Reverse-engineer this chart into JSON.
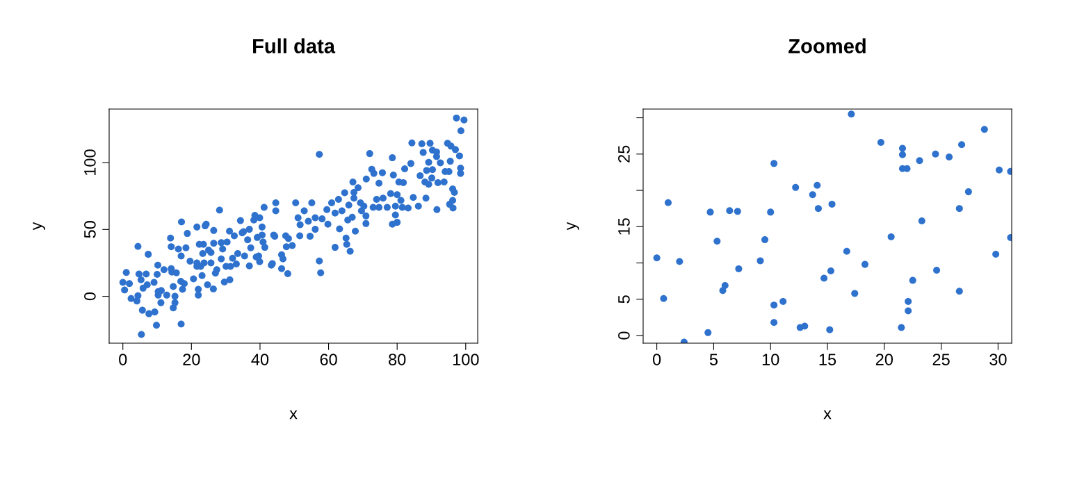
{
  "chart_data": [
    {
      "type": "scatter",
      "title": "Full data",
      "xlabel": "x",
      "ylabel": "y",
      "marker": "circle",
      "xlim": [
        -4,
        103.5
      ],
      "ylim": [
        -35,
        140
      ],
      "xticks": [
        0,
        20,
        40,
        60,
        80,
        100
      ],
      "yticks": [
        0,
        50,
        100
      ],
      "series": [
        {
          "color": "#2f72ce",
          "x": [
            5.4,
            9.8,
            17.0,
            0.0,
            0.5,
            1.0,
            1.9,
            2.4,
            4.4,
            4.1,
            4.4,
            4.7,
            5.3,
            5.7,
            5.9,
            6.8,
            7.4,
            7.6,
            7.1,
            9.1,
            9.3,
            10.0,
            10.2,
            10.3,
            10.3,
            11.2,
            11.1,
            12.0,
            12.8,
            13.9,
            14.1,
            14.1,
            14.3,
            14.7,
            15.2,
            15.2,
            14.7,
            15.6,
            16.2,
            17.1,
            17.0,
            17.4,
            16.9,
            17.9,
            18.4,
            18.8,
            19.6,
            20.6,
            21.6,
            21.6,
            21.6,
            22.0,
            22.0,
            22.3,
            22.7,
            23.1,
            23.5,
            24.0,
            24.3,
            23.3,
            23.7,
            24.7,
            25.0,
            25.7,
            25.7,
            26.5,
            26.5,
            26.4,
            27.0,
            27.4,
            28.2,
            28.7,
            28.7,
            29.1,
            29.6,
            30.1,
            30.4,
            31.1,
            31.2,
            31.4,
            32.0,
            32.5,
            33.1,
            33.5,
            34.3,
            34.8,
            35.2,
            35.5,
            36.4,
            36.9,
            36.9,
            37.3,
            38.2,
            38.5,
            38.9,
            39.2,
            39.6,
            39.9,
            39.9,
            40.6,
            40.6,
            41.2,
            40.9,
            41.4,
            43.3,
            43.6,
            44.0,
            44.3,
            44.6,
            44.6,
            46.3,
            46.3,
            46.7,
            47.5,
            47.7,
            48.1,
            48.3,
            49.4,
            50.4,
            55.1,
            51.1,
            51.7,
            51.6,
            52.9,
            54.1,
            54.6,
            56.1,
            56.1,
            57.3,
            57.3,
            57.7,
            58.1,
            59.5,
            59.8,
            60.9,
            61.9,
            61.9,
            62.9,
            63.2,
            63.9,
            64.7,
            65.1,
            65.3,
            65.6,
            65.9,
            66.3,
            66.9,
            67.1,
            67.4,
            67.4,
            67.8,
            68.6,
            69.3,
            69.6,
            70.3,
            70.9,
            70.9,
            71.0,
            72.0,
            72.6,
            73.0,
            73.2,
            74.0,
            74.7,
            74.7,
            75.7,
            75.9,
            77.1,
            78.1,
            78.6,
            78.6,
            78.9,
            79.5,
            80.0,
            79.5,
            80.0,
            80.5,
            81.1,
            81.5,
            81.8,
            82.2,
            83.2,
            84.0,
            84.3,
            84.7,
            86.2,
            86.7,
            87.2,
            87.6,
            88.1,
            88.6,
            88.4,
            89.2,
            89.2,
            89.6,
            90.1,
            90.3,
            90.3,
            91.5,
            91.5,
            91.6,
            91.9,
            92.6,
            93.7,
            94.0,
            94.7,
            95.3,
            95.5,
            95.7,
            95.1,
            96.2,
            96.3,
            96.2,
            96.7,
            97.0,
            97.3,
            98.2,
            98.5,
            98.5,
            98.6,
            99.5
          ],
          "values": [
            -28.5,
            -21.6,
            -20.7,
            10.4,
            4.7,
            17.8,
            9.5,
            -1.6,
            37.3,
            -3.5,
            0.5,
            16.7,
            12.4,
            -10.4,
            6.1,
            16.7,
            31.4,
            -13.0,
            8.6,
            10.4,
            -11.7,
            16.4,
            23.3,
            3.5,
            0.9,
            4.3,
            -4.8,
            19.9,
            0.9,
            43.5,
            37.1,
            20.7,
            18.1,
            7.3,
            0.0,
            -4.8,
            -8.6,
            17.6,
            35.4,
            55.6,
            30.2,
            5.2,
            11.2,
            9.5,
            36.3,
            47.0,
            26.3,
            13.0,
            51.8,
            25.0,
            22.4,
            5.2,
            0.9,
            38.9,
            22.4,
            15.5,
            38.9,
            52.7,
            53.9,
            32.0,
            25.0,
            8.6,
            34.6,
            25.0,
            32.8,
            49.2,
            39.7,
            5.5,
            17.3,
            19.9,
            64.4,
            40.1,
            28.0,
            35.4,
            10.7,
            22.4,
            40.6,
            48.7,
            12.4,
            22.4,
            28.5,
            45.2,
            24.2,
            32.0,
            56.6,
            47.5,
            48.3,
            30.2,
            42.3,
            50.1,
            22.8,
            36.3,
            57.0,
            60.5,
            29.4,
            44.0,
            30.2,
            58.7,
            25.9,
            51.8,
            45.8,
            66.5,
            40.6,
            36.6,
            23.3,
            24.5,
            45.8,
            44.9,
            69.9,
            63.9,
            31.1,
            20.7,
            28.0,
            45.2,
            37.1,
            16.9,
            43.2,
            38.0,
            69.9,
            69.9,
            58.7,
            53.5,
            45.2,
            63.9,
            56.1,
            44.9,
            58.7,
            50.1,
            106.1,
            26.4,
            17.6,
            57.9,
            64.8,
            53.9,
            69.9,
            62.2,
            36.6,
            72.5,
            50.4,
            63.9,
            77.4,
            43.5,
            38.9,
            57.0,
            68.2,
            33.7,
            59.1,
            85.5,
            77.7,
            73.4,
            48.7,
            81.2,
            69.9,
            63.9,
            67.4,
            60.1,
            54.4,
            87.7,
            106.7,
            95.0,
            66.5,
            91.9,
            72.5,
            84.6,
            66.5,
            92.4,
            73.4,
            66.5,
            76.8,
            103.6,
            53.9,
            90.7,
            60.8,
            55.3,
            67.4,
            76.0,
            85.5,
            71.7,
            66.5,
            85.0,
            95.3,
            66.0,
            99.3,
            114.7,
            73.9,
            67.4,
            90.2,
            114.0,
            107.6,
            85.5,
            94.1,
            73.4,
            100.2,
            83.8,
            114.4,
            88.4,
            109.2,
            94.7,
            107.9,
            104.5,
            64.8,
            85.0,
            99.8,
            85.5,
            93.3,
            114.4,
            68.8,
            101.0,
            112.3,
            93.3,
            80.3,
            66.0,
            71.7,
            77.7,
            109.7,
            133.3,
            105.0,
            95.9,
            91.9,
            123.8,
            131.8
          ]
        }
      ]
    },
    {
      "type": "scatter",
      "title": "Zoomed",
      "xlabel": "x",
      "ylabel": "y",
      "marker": "circle",
      "xlim": [
        -1.2,
        31.2
      ],
      "ylim": [
        -1.05,
        31.2
      ],
      "xticks": [
        0,
        5,
        10,
        15,
        20,
        25,
        30
      ],
      "yticks": [
        0,
        5,
        {
          "value": 10,
          "label": null
        },
        15,
        {
          "value": 20,
          "label": null
        },
        25,
        {
          "value": 30,
          "label": null
        }
      ],
      "series": [
        {
          "color": "#2f72ce",
          "x": [
            0.0,
            0.6,
            1.0,
            2.0,
            2.4,
            4.5,
            4.7,
            5.3,
            5.8,
            6.0,
            6.4,
            7.1,
            7.2,
            9.1,
            9.5,
            10.0,
            10.3,
            10.3,
            10.3,
            11.1,
            12.2,
            12.6,
            13.0,
            13.7,
            14.1,
            14.2,
            14.7,
            15.2,
            15.3,
            15.4,
            16.7,
            17.1,
            17.4,
            18.3,
            19.7,
            20.6,
            21.6,
            21.6,
            21.6,
            22.0,
            21.5,
            22.1,
            22.1,
            22.5,
            23.1,
            23.3,
            24.5,
            24.6,
            25.7,
            26.6,
            26.6,
            26.8,
            27.4,
            28.8,
            29.8,
            30.1,
            31.1,
            31.1
          ],
          "values": [
            10.7,
            5.1,
            18.3,
            10.2,
            -0.9,
            0.4,
            17.0,
            13.0,
            6.2,
            6.9,
            17.2,
            17.1,
            9.2,
            10.3,
            13.2,
            17.0,
            4.2,
            1.8,
            23.7,
            4.7,
            20.4,
            1.1,
            1.3,
            19.4,
            20.7,
            17.5,
            7.9,
            0.8,
            8.9,
            18.1,
            11.6,
            30.5,
            5.8,
            9.8,
            26.6,
            13.6,
            25.8,
            24.9,
            23.0,
            23.0,
            1.1,
            3.4,
            4.7,
            7.6,
            24.1,
            15.8,
            25.0,
            9.0,
            24.6,
            6.1,
            17.5,
            26.3,
            19.8,
            28.4,
            11.2,
            22.8,
            22.6,
            13.5
          ]
        }
      ]
    }
  ]
}
